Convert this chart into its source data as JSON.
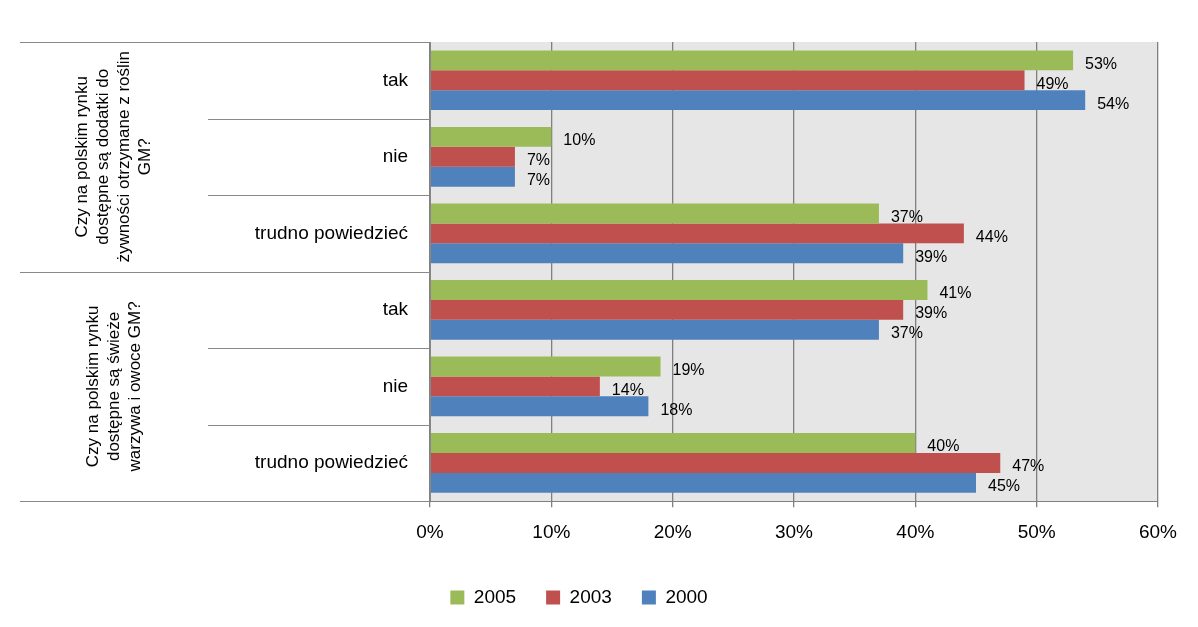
{
  "chart_data": {
    "type": "bar",
    "orientation": "horizontal",
    "categories": [
      "tak",
      "nie",
      "trudno powiedzieć",
      "tak",
      "nie",
      "trudno powiedzieć"
    ],
    "series": [
      {
        "name": "2005",
        "color": "#9bbb59",
        "values": [
          53,
          10,
          37,
          41,
          19,
          40
        ],
        "value_labels": [
          "53%",
          "10%",
          "37%",
          "41%",
          "19%",
          "40%"
        ]
      },
      {
        "name": "2003",
        "color": "#c0504d",
        "values": [
          49,
          7,
          44,
          39,
          14,
          47
        ],
        "value_labels": [
          "49%",
          "7%",
          "44%",
          "39%",
          "14%",
          "47%"
        ]
      },
      {
        "name": "2000",
        "color": "#4f81bd",
        "values": [
          54,
          7,
          39,
          37,
          18,
          45
        ],
        "value_labels": [
          "54%",
          "7%",
          "39%",
          "37%",
          "18%",
          "45%"
        ]
      }
    ],
    "xlim": [
      0,
      60
    ],
    "xticks": [
      {
        "value": 0,
        "label": "0%"
      },
      {
        "value": 10,
        "label": "10%"
      },
      {
        "value": 20,
        "label": "20%"
      },
      {
        "value": 30,
        "label": "30%"
      },
      {
        "value": 40,
        "label": "40%"
      },
      {
        "value": 50,
        "label": "50%"
      },
      {
        "value": 60,
        "label": "60%"
      }
    ],
    "grid": "x",
    "legend": "bottom",
    "annotations": [
      "Czy na polskim rynku dostępne są dodatki do żywności otrzymane z roślin GM?",
      "Czy na polskim rynku dostępne są świeże warzywa i owoce GM?"
    ]
  }
}
